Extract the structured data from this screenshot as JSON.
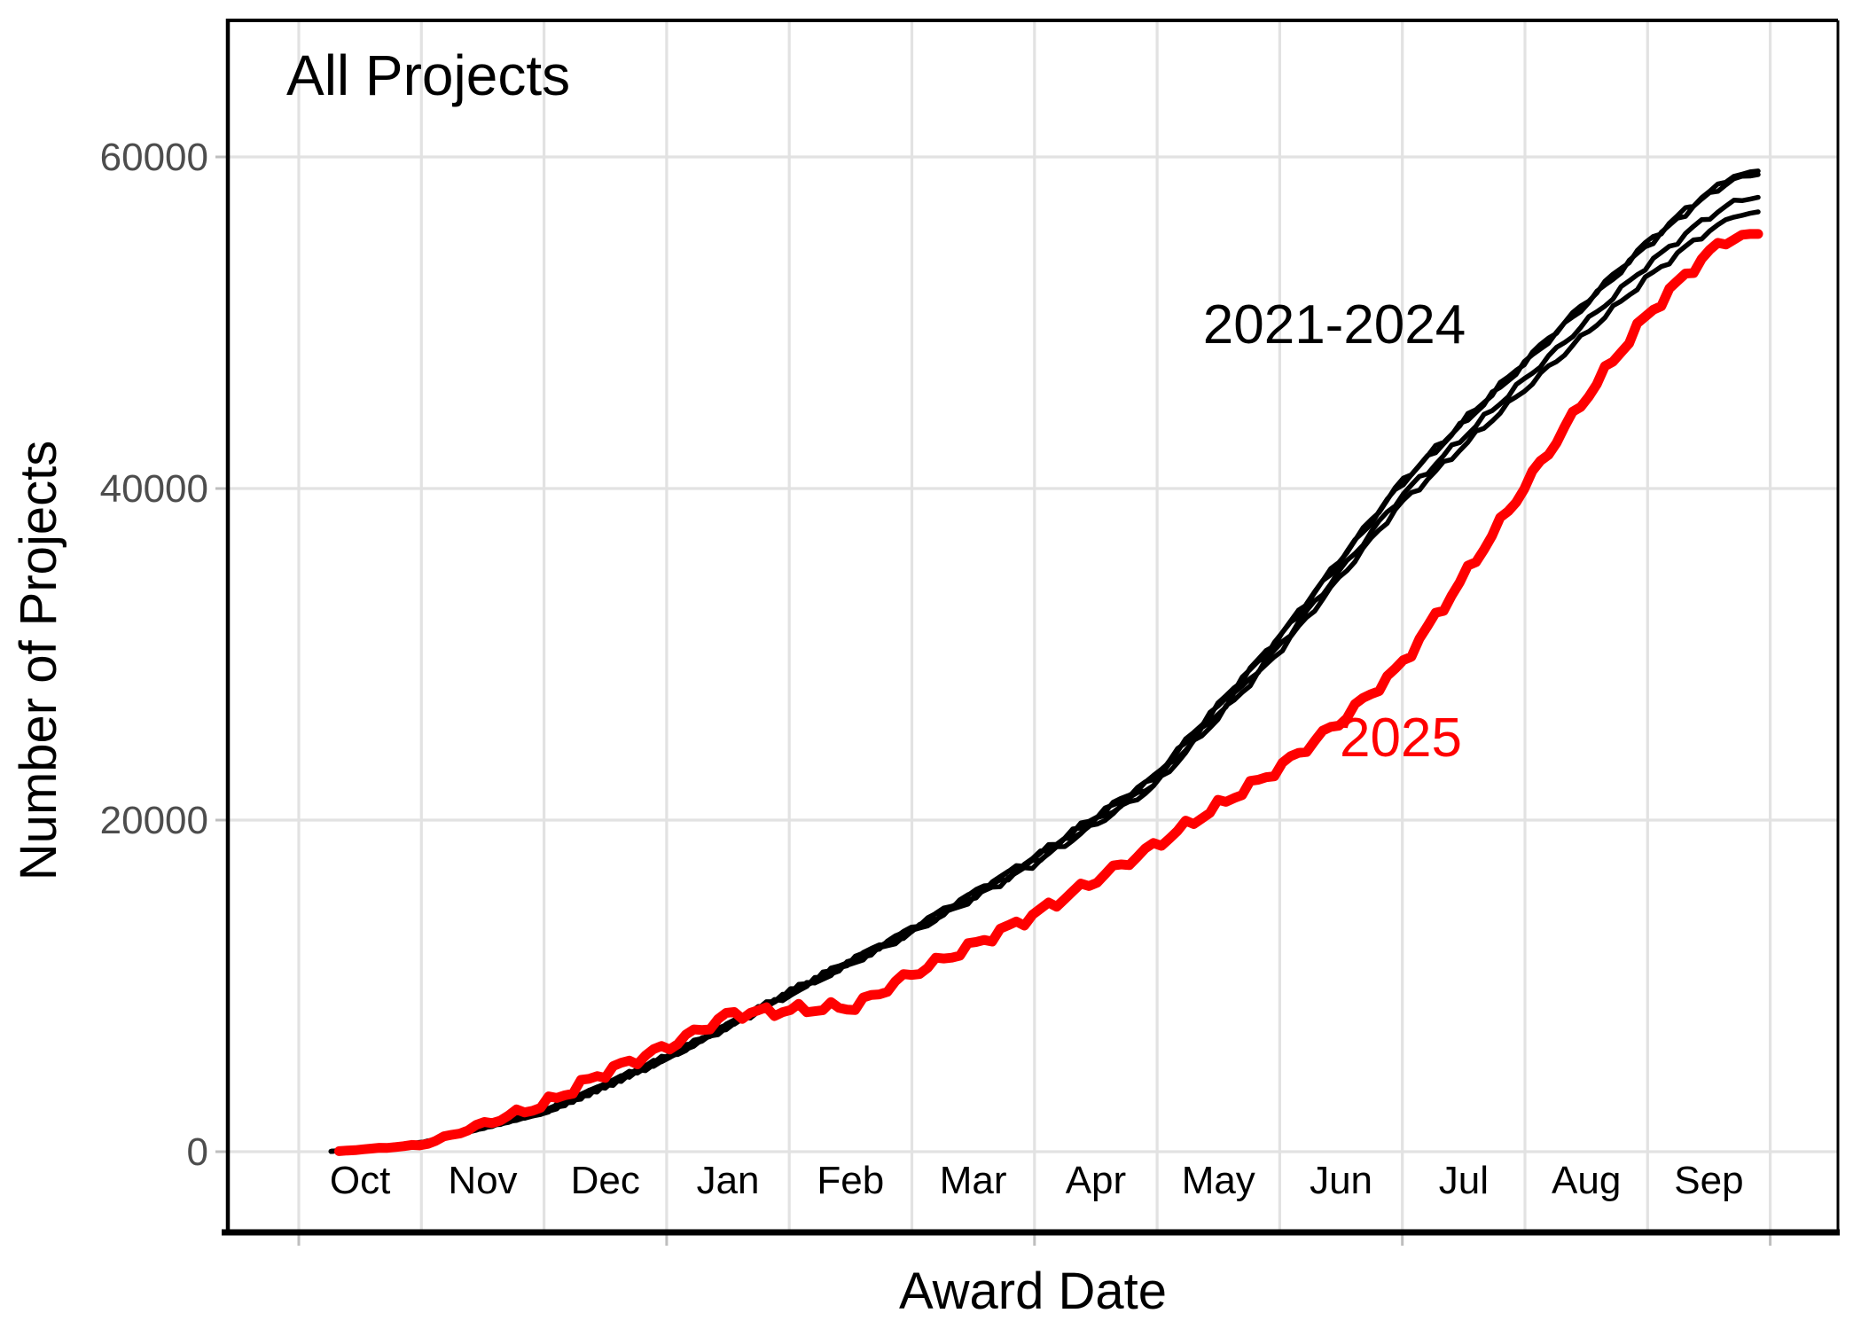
{
  "figure": {
    "title": "All Projects",
    "x_axis_title": "Award Date",
    "y_axis_title": "Number of Projects",
    "annotations": {
      "prior_years_label": "2021-2024",
      "current_year_label": "2025"
    }
  },
  "chart_data": {
    "type": "line",
    "title": "All Projects",
    "xlabel": "Award Date",
    "ylabel": "Number of Projects",
    "x_unit": "days since Oct 1 (federal fiscal year)",
    "x_tick_labels": [
      "Oct",
      "Nov",
      "Dec",
      "Jan",
      "Feb",
      "Mar",
      "Apr",
      "May",
      "Jun",
      "Jul",
      "Aug",
      "Sep"
    ],
    "x_major_tick_months": [
      0,
      3,
      6,
      9,
      12
    ],
    "y_ticks": [
      0,
      20000,
      40000,
      60000
    ],
    "ylim": [
      -4900,
      68400
    ],
    "grid": "vertical gridline at each month boundary, horizontal gridlines every 20000; light gray; no legend box (direct line labels)",
    "colors": {
      "prior_years_line": "#000000",
      "current_year_line": "#FF0000",
      "gridline": "#E2E2E2",
      "axis_tick_text": "#4D4D4D",
      "tick_mark": "#BEBEBE",
      "panel_border": "#000000"
    },
    "series": [
      {
        "name": "2021",
        "color": "#000000",
        "stroke_width": 5.5,
        "end_value": 59200,
        "anchors": [
          [
            8,
            20
          ],
          [
            31,
            551
          ],
          [
            61,
            2408
          ],
          [
            92,
            5778
          ],
          [
            123,
            9762
          ],
          [
            151,
            13304
          ],
          [
            182,
            17666
          ],
          [
            212,
            22546
          ],
          [
            243,
            30988
          ],
          [
            273,
            40264
          ],
          [
            304,
            47641
          ],
          [
            334,
            54736
          ],
          [
            347,
            57421
          ],
          [
            356,
            58871
          ],
          [
            363,
            59200
          ]
        ]
      },
      {
        "name": "2022",
        "color": "#000000",
        "stroke_width": 5.5,
        "end_value": 59000,
        "anchors": [
          [
            8,
            20
          ],
          [
            31,
            551
          ],
          [
            61,
            2406
          ],
          [
            92,
            5772
          ],
          [
            123,
            9751
          ],
          [
            151,
            13284
          ],
          [
            182,
            17636
          ],
          [
            212,
            22503
          ],
          [
            243,
            30918
          ],
          [
            273,
            40164
          ],
          [
            304,
            47510
          ],
          [
            334,
            54570
          ],
          [
            347,
            57234
          ],
          [
            356,
            58679
          ],
          [
            363,
            59000
          ]
        ]
      },
      {
        "name": "2023",
        "color": "#000000",
        "stroke_width": 5.5,
        "end_value": 57600,
        "anchors": [
          [
            8,
            20
          ],
          [
            31,
            549
          ],
          [
            61,
            2397
          ],
          [
            92,
            5737
          ],
          [
            123,
            9672
          ],
          [
            151,
            13153
          ],
          [
            182,
            17425
          ],
          [
            212,
            22188
          ],
          [
            243,
            30424
          ],
          [
            273,
            39443
          ],
          [
            304,
            46562
          ],
          [
            334,
            53374
          ],
          [
            347,
            55936
          ],
          [
            356,
            57313
          ],
          [
            363,
            57600
          ]
        ]
      },
      {
        "name": "2024",
        "color": "#000000",
        "stroke_width": 5.5,
        "end_value": 56700,
        "anchors": [
          [
            8,
            20
          ],
          [
            31,
            548
          ],
          [
            61,
            2390
          ],
          [
            92,
            5715
          ],
          [
            123,
            9621
          ],
          [
            151,
            13068
          ],
          [
            182,
            17289
          ],
          [
            212,
            21986
          ],
          [
            243,
            30106
          ],
          [
            273,
            38981
          ],
          [
            304,
            45953
          ],
          [
            334,
            52607
          ],
          [
            347,
            55101
          ],
          [
            356,
            56434
          ],
          [
            363,
            56700
          ]
        ]
      },
      {
        "name": "2025",
        "color": "#FF0000",
        "stroke_width": 11,
        "end_value": 55400,
        "anchors": [
          [
            10,
            30
          ],
          [
            31,
            420
          ],
          [
            45,
            1600
          ],
          [
            61,
            2850
          ],
          [
            75,
            4700
          ],
          [
            92,
            6400
          ],
          [
            107,
            8300
          ],
          [
            123,
            8550
          ],
          [
            138,
            8750
          ],
          [
            151,
            10600
          ],
          [
            166,
            12300
          ],
          [
            182,
            14250
          ],
          [
            197,
            16300
          ],
          [
            212,
            18400
          ],
          [
            227,
            20700
          ],
          [
            243,
            23100
          ],
          [
            258,
            25900
          ],
          [
            273,
            29200
          ],
          [
            288,
            34300
          ],
          [
            304,
            40100
          ],
          [
            319,
            45400
          ],
          [
            334,
            50300
          ],
          [
            344,
            52900
          ],
          [
            352,
            54700
          ],
          [
            358,
            55250
          ],
          [
            363,
            55400
          ]
        ]
      }
    ]
  }
}
